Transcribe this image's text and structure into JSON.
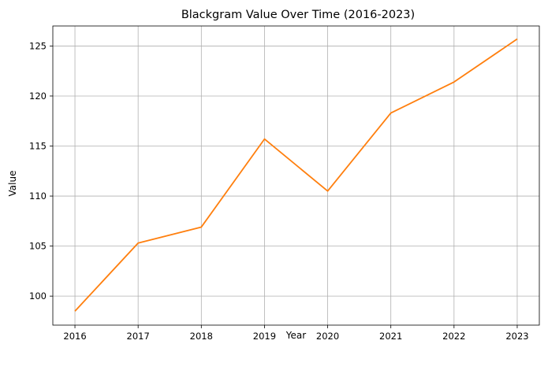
{
  "chart_data": {
    "type": "line",
    "title": "Blackgram Value Over Time (2016-2023)",
    "xlabel": "Year",
    "ylabel": "Value",
    "x": [
      2016,
      2017,
      2018,
      2019,
      2020,
      2021,
      2022,
      2023
    ],
    "x_tick_labels": [
      "2016",
      "2017",
      "2018",
      "2019",
      "2020",
      "2021",
      "2022",
      "2023"
    ],
    "series": [
      {
        "values": [
          98.5,
          105.3,
          106.9,
          115.7,
          110.5,
          118.3,
          121.4,
          125.7
        ],
        "color": "#ff7f0e"
      }
    ],
    "xlim": [
      2015.65,
      2023.35
    ],
    "ylim": [
      97.1,
      127.0
    ],
    "y_ticks": [
      100,
      105,
      110,
      115,
      120,
      125
    ],
    "y_tick_labels": [
      "100",
      "105",
      "110",
      "115",
      "120",
      "125"
    ],
    "grid": true
  }
}
